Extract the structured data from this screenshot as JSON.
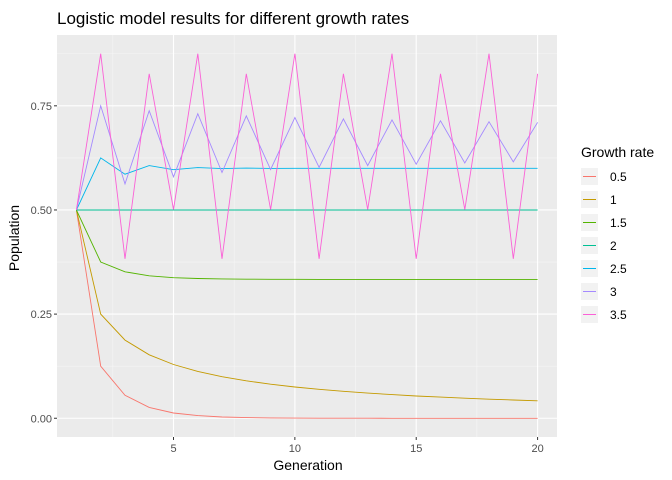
{
  "chart_data": {
    "type": "line",
    "title": "Logistic model results for different growth rates",
    "xlabel": "Generation",
    "ylabel": "Population",
    "xlim": [
      0.2,
      20.8
    ],
    "ylim": [
      -0.045,
      0.92
    ],
    "x_ticks": [
      5,
      10,
      15,
      20
    ],
    "x_tick_labels": [
      "5",
      "10",
      "15",
      "20"
    ],
    "y_ticks": [
      0,
      0.25,
      0.5,
      0.75
    ],
    "y_tick_labels": [
      "0.00",
      "0.25",
      "0.50",
      "0.75"
    ],
    "grid": true,
    "legend": {
      "title": "Growth rate",
      "position": "right"
    },
    "x": [
      1,
      2,
      3,
      4,
      5,
      6,
      7,
      8,
      9,
      10,
      11,
      12,
      13,
      14,
      15,
      16,
      17,
      18,
      19,
      20
    ],
    "series": [
      {
        "name": "0.5",
        "color": "#F8766D",
        "values": [
          0.5,
          0.125,
          0.055,
          0.026,
          0.0127,
          0.0063,
          0.0031,
          0.0016,
          0.0008,
          0.0004,
          0.0002,
          0.0001,
          0.0001,
          0,
          0,
          0,
          0,
          0,
          0,
          0
        ]
      },
      {
        "name": "1",
        "color": "#C49A00",
        "values": [
          0.5,
          0.25,
          0.1875,
          0.1523,
          0.1291,
          0.1124,
          0.0998,
          0.0898,
          0.0817,
          0.075,
          0.0694,
          0.0646,
          0.0604,
          0.0568,
          0.0535,
          0.0507,
          0.0481,
          0.0458,
          0.0437,
          0.0418
        ]
      },
      {
        "name": "1.5",
        "color": "#53B400",
        "values": [
          0.5,
          0.375,
          0.3516,
          0.3419,
          0.3375,
          0.3354,
          0.3344,
          0.3339,
          0.3336,
          0.3335,
          0.3334,
          0.3334,
          0.3333,
          0.3333,
          0.3333,
          0.3333,
          0.3333,
          0.3333,
          0.3333,
          0.3333
        ]
      },
      {
        "name": "2",
        "color": "#00C094",
        "values": [
          0.5,
          0.5,
          0.5,
          0.5,
          0.5,
          0.5,
          0.5,
          0.5,
          0.5,
          0.5,
          0.5,
          0.5,
          0.5,
          0.5,
          0.5,
          0.5,
          0.5,
          0.5,
          0.5,
          0.5
        ]
      },
      {
        "name": "2.5",
        "color": "#00B6EB",
        "values": [
          0.5,
          0.625,
          0.5859,
          0.6065,
          0.5966,
          0.6017,
          0.5992,
          0.6004,
          0.5998,
          0.6001,
          0.6,
          0.6,
          0.6,
          0.6,
          0.6,
          0.6,
          0.6,
          0.6,
          0.6,
          0.6
        ]
      },
      {
        "name": "3",
        "color": "#A58AFF",
        "values": [
          0.5,
          0.75,
          0.5625,
          0.7383,
          0.5797,
          0.731,
          0.5899,
          0.7257,
          0.5971,
          0.7218,
          0.6023,
          0.7186,
          0.6066,
          0.7161,
          0.6099,
          0.714,
          0.6127,
          0.7119,
          0.6153,
          0.7101
        ]
      },
      {
        "name": "3.5",
        "color": "#FB61D7",
        "values": [
          0.5,
          0.875,
          0.3828,
          0.8269,
          0.501,
          0.875,
          0.3828,
          0.8269,
          0.5009,
          0.875,
          0.3828,
          0.8269,
          0.5008,
          0.875,
          0.3828,
          0.8269,
          0.5008,
          0.875,
          0.3828,
          0.8269
        ]
      }
    ]
  }
}
